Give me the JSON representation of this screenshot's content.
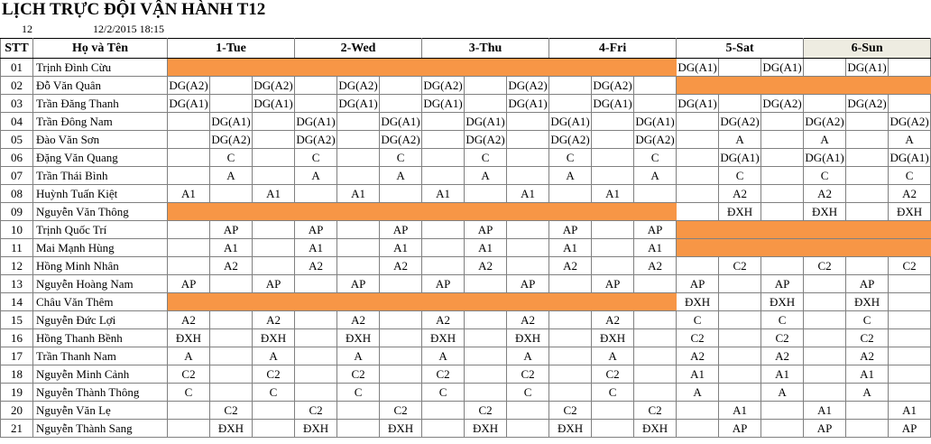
{
  "title": "LỊCH TRỰC ĐỘI VẬN HÀNH T12",
  "sheet_row": {
    "number": "12",
    "timestamp": "12/2/2015 18:15"
  },
  "header": {
    "stt": "STT",
    "name": "Họ và Tên",
    "days": [
      "1-Tue",
      "2-Wed",
      "3-Thu",
      "4-Fri",
      "5-Sat",
      "6-Sun"
    ]
  },
  "off_color": "#f79646",
  "rows": [
    {
      "stt": "01",
      "name": "Trịnh Đình Cừu",
      "cells": [
        null,
        null,
        null,
        null,
        null,
        null,
        null,
        null,
        null,
        null,
        null,
        null,
        "DG(A1)",
        null,
        "DG(A1)",
        null,
        "DG(A1)",
        null
      ],
      "off_days": [
        0,
        1,
        2,
        3
      ]
    },
    {
      "stt": "02",
      "name": "Đỗ Văn Quân",
      "cells": [
        "DG(A2)",
        null,
        "DG(A2)",
        null,
        "DG(A2)",
        null,
        "DG(A2)",
        null,
        "DG(A2)",
        null,
        "DG(A2)",
        null,
        null,
        null,
        null,
        null,
        null,
        null
      ],
      "off_days": [
        4,
        5
      ]
    },
    {
      "stt": "03",
      "name": "Trần Đăng Thanh",
      "cells": [
        "DG(A1)",
        null,
        "DG(A1)",
        null,
        "DG(A1)",
        null,
        "DG(A1)",
        null,
        "DG(A1)",
        null,
        "DG(A1)",
        null,
        "DG(A1)",
        null,
        "DG(A2)",
        null,
        "DG(A2)",
        null
      ]
    },
    {
      "stt": "04",
      "name": "Trần Đông Nam",
      "cells": [
        null,
        "DG(A1)",
        null,
        "DG(A1)",
        null,
        "DG(A1)",
        null,
        "DG(A1)",
        null,
        "DG(A1)",
        null,
        "DG(A1)",
        null,
        "DG(A2)",
        null,
        "DG(A2)",
        null,
        "DG(A2)"
      ]
    },
    {
      "stt": "05",
      "name": "Đào Văn Sơn",
      "cells": [
        null,
        "DG(A2)",
        null,
        "DG(A2)",
        null,
        "DG(A2)",
        null,
        "DG(A2)",
        null,
        "DG(A2)",
        null,
        "DG(A2)",
        null,
        "A",
        null,
        "A",
        null,
        "A"
      ]
    },
    {
      "stt": "06",
      "name": "Đặng Văn Quang",
      "cells": [
        null,
        "C",
        null,
        "C",
        null,
        "C",
        null,
        "C",
        null,
        "C",
        null,
        "C",
        null,
        "DG(A1)",
        null,
        "DG(A1)",
        null,
        "DG(A1)"
      ]
    },
    {
      "stt": "07",
      "name": "Trần Thái Bình",
      "cells": [
        null,
        "A",
        null,
        "A",
        null,
        "A",
        null,
        "A",
        null,
        "A",
        null,
        "A",
        null,
        "C",
        null,
        "C",
        null,
        "C"
      ]
    },
    {
      "stt": "08",
      "name": "Huỳnh Tuấn Kiệt",
      "cells": [
        "A1",
        null,
        "A1",
        null,
        "A1",
        null,
        "A1",
        null,
        "A1",
        null,
        "A1",
        null,
        null,
        "A2",
        null,
        "A2",
        null,
        "A2"
      ]
    },
    {
      "stt": "09",
      "name": "Nguyễn Văn Thông",
      "cells": [
        null,
        null,
        null,
        null,
        null,
        null,
        null,
        null,
        null,
        null,
        null,
        null,
        null,
        "ĐXH",
        null,
        "ĐXH",
        null,
        "ĐXH"
      ],
      "off_days": [
        0,
        1,
        2,
        3
      ]
    },
    {
      "stt": "10",
      "name": "Trịnh Quốc Trí",
      "cells": [
        null,
        "AP",
        null,
        "AP",
        null,
        "AP",
        null,
        "AP",
        null,
        "AP",
        null,
        "AP",
        null,
        null,
        null,
        null,
        null,
        null
      ],
      "off_days": [
        4,
        5
      ]
    },
    {
      "stt": "11",
      "name": "Mai Mạnh Hùng",
      "cells": [
        null,
        "A1",
        null,
        "A1",
        null,
        "A1",
        null,
        "A1",
        null,
        "A1",
        null,
        "A1",
        null,
        null,
        null,
        null,
        null,
        null
      ],
      "off_days": [
        4,
        5
      ]
    },
    {
      "stt": "12",
      "name": "Hồng Minh Nhân",
      "cells": [
        null,
        "A2",
        null,
        "A2",
        null,
        "A2",
        null,
        "A2",
        null,
        "A2",
        null,
        "A2",
        null,
        "C2",
        null,
        "C2",
        null,
        "C2"
      ]
    },
    {
      "stt": "13",
      "name": "Nguyễn Hoàng Nam",
      "cells": [
        "AP",
        null,
        "AP",
        null,
        "AP",
        null,
        "AP",
        null,
        "AP",
        null,
        "AP",
        null,
        "AP",
        null,
        "AP",
        null,
        "AP",
        null
      ]
    },
    {
      "stt": "14",
      "name": "Châu Văn Thêm",
      "cells": [
        null,
        null,
        null,
        null,
        null,
        null,
        null,
        null,
        null,
        null,
        null,
        null,
        "ĐXH",
        null,
        "ĐXH",
        null,
        "ĐXH",
        null
      ],
      "off_days": [
        0,
        1,
        2,
        3
      ]
    },
    {
      "stt": "15",
      "name": "Nguyễn Đức Lợi",
      "cells": [
        "A2",
        null,
        "A2",
        null,
        "A2",
        null,
        "A2",
        null,
        "A2",
        null,
        "A2",
        null,
        "C",
        null,
        "C",
        null,
        "C",
        null
      ]
    },
    {
      "stt": "16",
      "name": "Hồng Thanh Bềnh",
      "cells": [
        "ĐXH",
        null,
        "ĐXH",
        null,
        "ĐXH",
        null,
        "ĐXH",
        null,
        "ĐXH",
        null,
        "ĐXH",
        null,
        "C2",
        null,
        "C2",
        null,
        "C2",
        null
      ]
    },
    {
      "stt": "17",
      "name": "Trần Thanh Nam",
      "cells": [
        "A",
        null,
        "A",
        null,
        "A",
        null,
        "A",
        null,
        "A",
        null,
        "A",
        null,
        "A2",
        null,
        "A2",
        null,
        "A2",
        null
      ]
    },
    {
      "stt": "18",
      "name": "Nguyễn Minh Cảnh",
      "cells": [
        "C2",
        null,
        "C2",
        null,
        "C2",
        null,
        "C2",
        null,
        "C2",
        null,
        "C2",
        null,
        "A1",
        null,
        "A1",
        null,
        "A1",
        null
      ]
    },
    {
      "stt": "19",
      "name": "Nguyễn Thành Thông",
      "cells": [
        "C",
        null,
        "C",
        null,
        "C",
        null,
        "C",
        null,
        "C",
        null,
        "C",
        null,
        "A",
        null,
        "A",
        null,
        "A",
        null
      ]
    },
    {
      "stt": "20",
      "name": "Nguyễn Văn Lẹ",
      "cells": [
        null,
        "C2",
        null,
        "C2",
        null,
        "C2",
        null,
        "C2",
        null,
        "C2",
        null,
        "C2",
        null,
        "A1",
        null,
        "A1",
        null,
        "A1"
      ]
    },
    {
      "stt": "21",
      "name": "Nguyễn Thành Sang",
      "cells": [
        null,
        "ĐXH",
        null,
        "ĐXH",
        null,
        "ĐXH",
        null,
        "ĐXH",
        null,
        "ĐXH",
        null,
        "ĐXH",
        null,
        "AP",
        null,
        "AP",
        null,
        "AP"
      ]
    }
  ]
}
